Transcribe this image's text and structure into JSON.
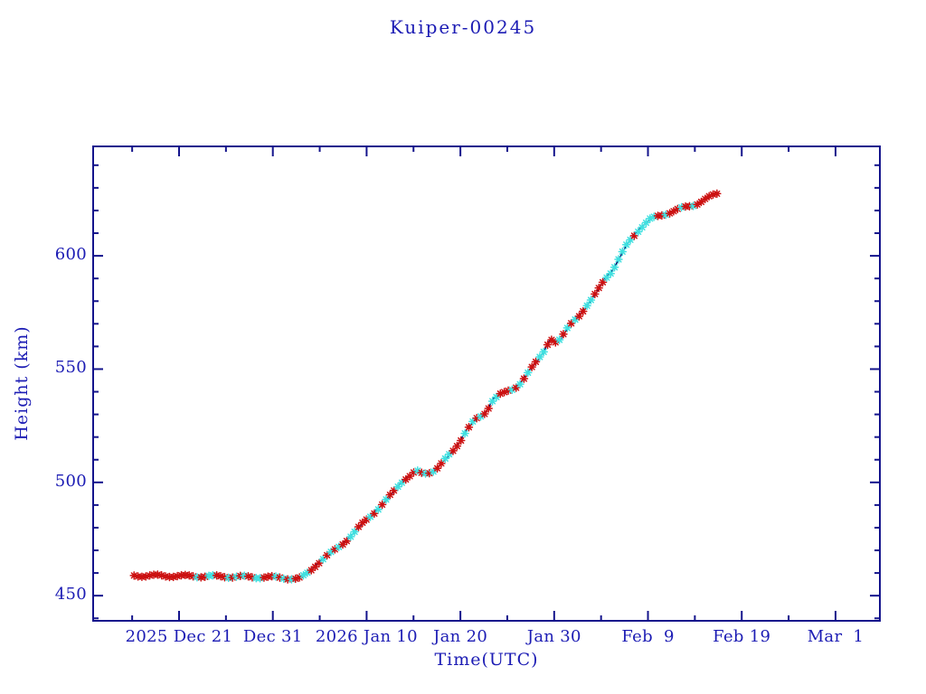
{
  "title": "Kuiper-00245",
  "chart_data": {
    "type": "line",
    "title": "Kuiper-00245",
    "xlabel": "Time(UTC)",
    "ylabel": "Height (km)",
    "legend": "none",
    "grid": false,
    "x_unit_days_since": "2025 Dec 21",
    "x_range_days": [
      -9.16,
      74.73
    ],
    "y_range_km": [
      438.9,
      648.3
    ],
    "x_major_ticks": [
      {
        "day": 0,
        "label": "2025 Dec 21"
      },
      {
        "day": 10,
        "label": "Dec 31"
      },
      {
        "day": 20,
        "label": "2026 Jan 10"
      },
      {
        "day": 30,
        "label": "Jan 20"
      },
      {
        "day": 40,
        "label": "Jan 30"
      },
      {
        "day": 50,
        "label": "Feb  9"
      },
      {
        "day": 60,
        "label": "Feb 19"
      },
      {
        "day": 70,
        "label": "Mar  1"
      }
    ],
    "x_minor_tick_days": [
      -5,
      5,
      15,
      25,
      35,
      45,
      55,
      65
    ],
    "y_major_ticks": [
      {
        "value": 450,
        "label": "450"
      },
      {
        "value": 500,
        "label": "500"
      },
      {
        "value": 550,
        "label": "550"
      },
      {
        "value": 600,
        "label": "600"
      }
    ],
    "y_minor_ticks": [
      440,
      460,
      470,
      480,
      490,
      510,
      520,
      530,
      540,
      560,
      570,
      580,
      590,
      610,
      620,
      630,
      640
    ],
    "colors": {
      "axis": "#14148c",
      "text": "#1c1cb4",
      "line": "#000066",
      "marker_red": "#cc1111",
      "marker_cyan": "#40e0e0",
      "background": "#ffffff"
    },
    "points_day_heightkm": [
      [
        -4.8,
        458.9
      ],
      [
        -3.5,
        458.8
      ],
      [
        -2,
        458.8
      ],
      [
        -0.5,
        458.7
      ],
      [
        1,
        458.6
      ],
      [
        2.5,
        458.6
      ],
      [
        4,
        458.5
      ],
      [
        5.5,
        458.4
      ],
      [
        7,
        458.3
      ],
      [
        8.5,
        458.2
      ],
      [
        10,
        458.1
      ],
      [
        11,
        457.9
      ],
      [
        12,
        457.6
      ],
      [
        12.7,
        457.3
      ],
      [
        13.3,
        458.6
      ],
      [
        14,
        461
      ],
      [
        14.7,
        464
      ],
      [
        15.6,
        467
      ],
      [
        16.6,
        470
      ],
      [
        17.6,
        473.5
      ],
      [
        18.6,
        477.5
      ],
      [
        19.5,
        481.5
      ],
      [
        20.5,
        485.5
      ],
      [
        21.5,
        489.5
      ],
      [
        22.4,
        493.5
      ],
      [
        23.4,
        498.5
      ],
      [
        23.9,
        501
      ],
      [
        24.8,
        503.5
      ],
      [
        25.3,
        505
      ],
      [
        26,
        503.5
      ],
      [
        26.8,
        504.5
      ],
      [
        27.4,
        506
      ],
      [
        28,
        508.5
      ],
      [
        28.7,
        511.5
      ],
      [
        29.3,
        514
      ],
      [
        30,
        518.5
      ],
      [
        30.6,
        523
      ],
      [
        31.4,
        527
      ],
      [
        32,
        528.5
      ],
      [
        32.4,
        529
      ],
      [
        33,
        533
      ],
      [
        33.5,
        537
      ],
      [
        34.2,
        539
      ],
      [
        34.8,
        539.5
      ],
      [
        35.7,
        541
      ],
      [
        36.4,
        544
      ],
      [
        37,
        547.5
      ],
      [
        37.6,
        550.5
      ],
      [
        38.2,
        553.5
      ],
      [
        38.8,
        557
      ],
      [
        39.4,
        562
      ],
      [
        39.7,
        563.5
      ],
      [
        40.1,
        562
      ],
      [
        40.7,
        563
      ],
      [
        41.2,
        566.5
      ],
      [
        41.7,
        569.5
      ],
      [
        42.2,
        572
      ],
      [
        42.7,
        574
      ],
      [
        43.3,
        577
      ],
      [
        43.9,
        580
      ],
      [
        44.4,
        583
      ],
      [
        44.9,
        586.5
      ],
      [
        45.4,
        590
      ],
      [
        46.1,
        593
      ],
      [
        46.5,
        595.5
      ],
      [
        46.9,
        598.5
      ],
      [
        47.3,
        601.5
      ],
      [
        47.7,
        604.5
      ],
      [
        48.2,
        607.5
      ],
      [
        48.7,
        610
      ],
      [
        49.2,
        612.2
      ],
      [
        49.7,
        614.2
      ],
      [
        50.2,
        616
      ],
      [
        50.9,
        617.2
      ],
      [
        51.9,
        618.6
      ],
      [
        53,
        620.2
      ],
      [
        54,
        621.4
      ],
      [
        55,
        622.6
      ],
      [
        55.9,
        624.6
      ],
      [
        56.7,
        626.2
      ],
      [
        57.5,
        627.5
      ]
    ],
    "markers": {
      "shape": "asterisk",
      "start_day": -4.8,
      "step_day": 0.42,
      "count": 149,
      "color_segments": [
        {
          "n": 15,
          "seq": "r"
        },
        {
          "n": 106,
          "seq": "rcrrccrrrcrc"
        },
        {
          "n": 12,
          "seq": "ccccccrccccc"
        },
        {
          "n": 16,
          "seq": "rrcrrrcrrcrrrrrr"
        }
      ]
    }
  }
}
